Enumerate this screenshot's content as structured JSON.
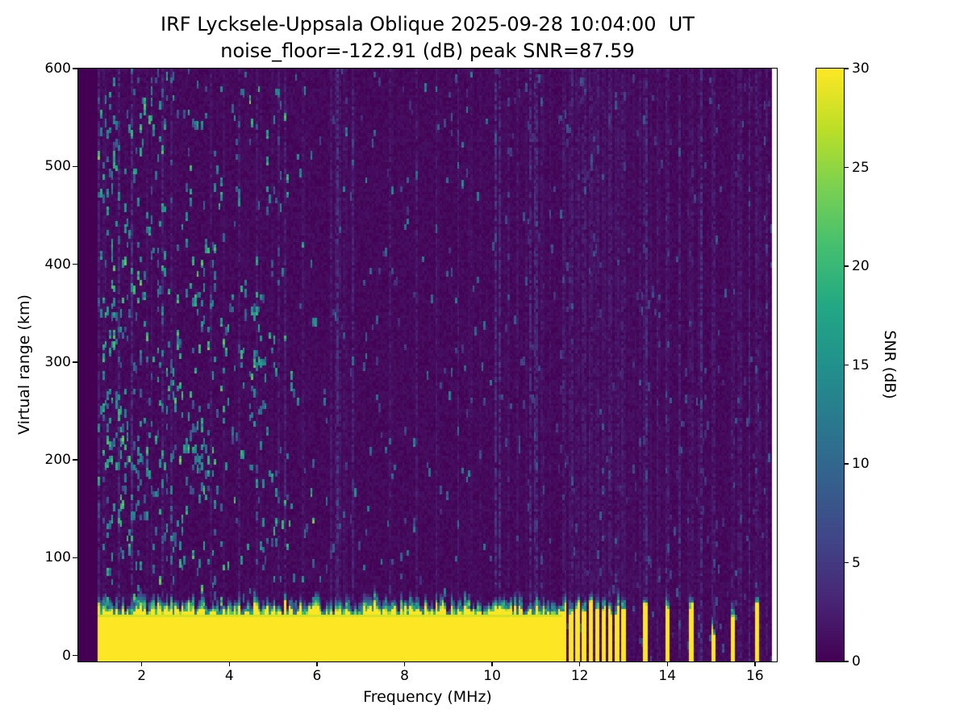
{
  "chart_data": {
    "type": "heatmap",
    "title": "IRF Lycksele-Uppsala Oblique 2025-09-28 10:04:00  UT",
    "subtitle": "noise_floor=-122.91 (dB) peak SNR=87.59",
    "xlabel": "Frequency (MHz)",
    "ylabel": "Virtual range (km)",
    "xlim": [
      0.55,
      16.5
    ],
    "ylim": [
      -6,
      600
    ],
    "xticks": [
      2,
      4,
      6,
      8,
      10,
      12,
      14,
      16
    ],
    "yticks": [
      0,
      100,
      200,
      300,
      400,
      500,
      600
    ],
    "noise_floor_db": -122.91,
    "peak_snr_db": 87.59,
    "colorbar": {
      "label": "SNR (dB)",
      "min": 0,
      "max": 30,
      "ticks": [
        0,
        5,
        10,
        15,
        20,
        25,
        30
      ]
    },
    "colormap": {
      "name": "viridis",
      "stops": [
        [
          0.0,
          "#440154"
        ],
        [
          0.1,
          "#482475"
        ],
        [
          0.2,
          "#414487"
        ],
        [
          0.3,
          "#355f8d"
        ],
        [
          0.4,
          "#2a788e"
        ],
        [
          0.5,
          "#21918c"
        ],
        [
          0.6,
          "#22a884"
        ],
        [
          0.7,
          "#44bf70"
        ],
        [
          0.8,
          "#7ad151"
        ],
        [
          0.9,
          "#bddf26"
        ],
        [
          1.0,
          "#fde725"
        ]
      ]
    },
    "features": {
      "seed": 7,
      "freq_start_mhz": 1.0,
      "freq_step_mhz": 0.05,
      "num_columns": 308,
      "range_step_km": 3,
      "no_data_band_mhz": [
        16.39,
        16.5
      ],
      "ground_clutter": {
        "freq_min": 1.0,
        "freq_max": 11.55,
        "yellow_top_km": [
          40,
          52
        ],
        "teal_top_km": [
          48,
          68
        ],
        "snr_db": 30
      },
      "pulses": [
        {
          "f": 11.65,
          "w": 0.07,
          "h": 50
        },
        {
          "f": 11.8,
          "w": 0.07,
          "h": 46
        },
        {
          "f": 11.95,
          "w": 0.07,
          "h": 50
        },
        {
          "f": 12.1,
          "w": 0.07,
          "h": 44
        },
        {
          "f": 12.25,
          "w": 0.07,
          "h": 50
        },
        {
          "f": 12.4,
          "w": 0.07,
          "h": 46
        },
        {
          "f": 12.55,
          "w": 0.07,
          "h": 50
        },
        {
          "f": 12.7,
          "w": 0.07,
          "h": 44
        },
        {
          "f": 12.85,
          "w": 0.07,
          "h": 48
        },
        {
          "f": 13.0,
          "w": 0.07,
          "h": 52
        },
        {
          "f": 13.5,
          "w": 0.08,
          "h": 50
        },
        {
          "f": 14.0,
          "w": 0.08,
          "h": 55
        },
        {
          "f": 14.57,
          "w": 0.1,
          "h": 52
        },
        {
          "f": 15.05,
          "w": 0.06,
          "h": 26
        },
        {
          "f": 15.5,
          "w": 0.07,
          "h": 44
        },
        {
          "f": 16.05,
          "w": 0.08,
          "h": 50
        }
      ],
      "clusters": [
        {
          "f": 1.35,
          "r": 235,
          "rf": 0.35,
          "rr": 40,
          "p": 0.1
        },
        {
          "f": 1.7,
          "r": 195,
          "rf": 0.3,
          "rr": 30,
          "p": 0.1
        },
        {
          "f": 2.1,
          "r": 180,
          "rf": 0.3,
          "rr": 35,
          "p": 0.08
        },
        {
          "f": 3.3,
          "r": 205,
          "rf": 0.35,
          "rr": 45,
          "p": 0.09
        },
        {
          "f": 1.5,
          "r": 350,
          "rf": 0.25,
          "rr": 40,
          "p": 0.07
        },
        {
          "f": 2.6,
          "r": 300,
          "rf": 0.3,
          "rr": 50,
          "p": 0.06
        },
        {
          "f": 1.2,
          "r": 520,
          "rf": 0.25,
          "rr": 60,
          "p": 0.06
        },
        {
          "f": 2.3,
          "r": 555,
          "rf": 0.3,
          "rr": 40,
          "p": 0.06
        },
        {
          "f": 3.4,
          "r": 390,
          "rf": 0.3,
          "rr": 50,
          "p": 0.06
        },
        {
          "f": 4.7,
          "r": 300,
          "rf": 0.3,
          "rr": 80,
          "p": 0.04
        },
        {
          "f": 2.8,
          "r": 120,
          "rf": 0.4,
          "rr": 40,
          "p": 0.06
        },
        {
          "f": 5.0,
          "r": 155,
          "rf": 0.4,
          "rr": 40,
          "p": 0.04
        }
      ],
      "speckle_base_prob": 0.012,
      "speckle_lowfreq_boost": 0.006,
      "streak_prob": 0.3,
      "streak_max_db": 2.4
    }
  }
}
